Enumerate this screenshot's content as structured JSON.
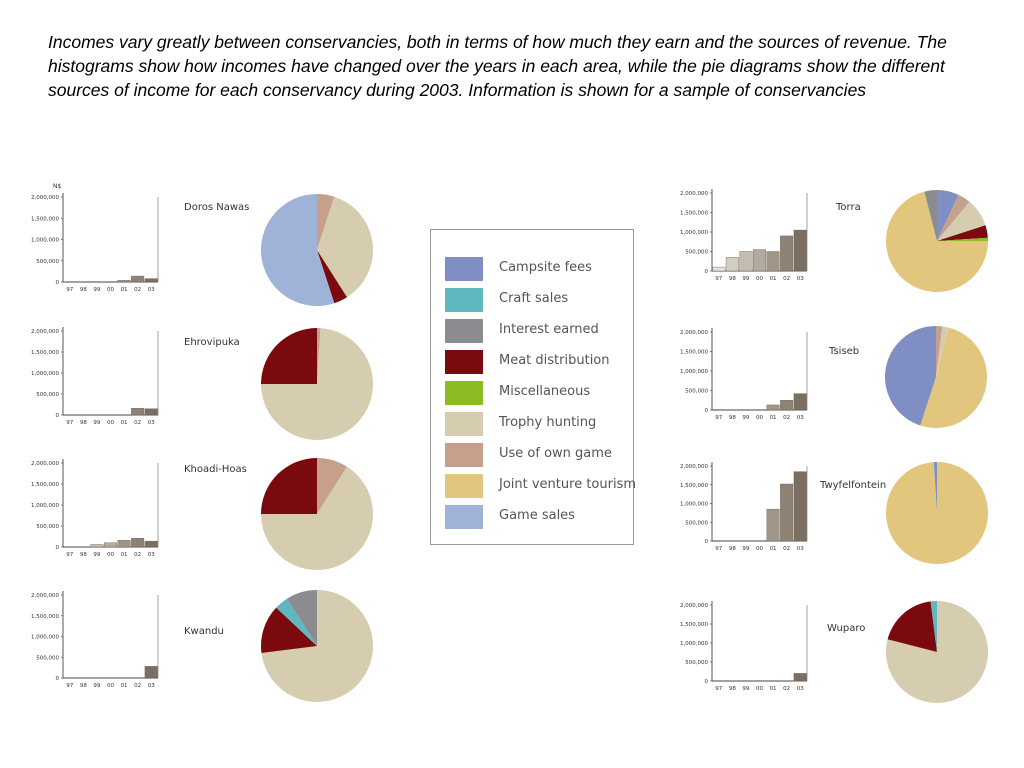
{
  "caption": "Incomes vary greatly between conservancies, both in terms of how much they earn and the sources of revenue. The histograms show how incomes have changed over the years in each area, while the pie diagrams show the different sources of income for each conservancy during 2003. Information is shown for a sample of conservancies",
  "legend": [
    {
      "label": "Campsite fees",
      "color": "#7f8fc4"
    },
    {
      "label": "Craft sales",
      "color": "#5fb8c0"
    },
    {
      "label": "Interest earned",
      "color": "#8c8c90"
    },
    {
      "label": "Meat distribution",
      "color": "#7b0a0e"
    },
    {
      "label": "Miscellaneous",
      "color": "#8cbb22"
    },
    {
      "label": "Trophy hunting",
      "color": "#d6cdb0"
    },
    {
      "label": "Use of own game",
      "color": "#c7a08c"
    },
    {
      "label": "Joint venture tourism",
      "color": "#e3c67e"
    },
    {
      "label": "Game sales",
      "color": "#9fb3d8"
    }
  ],
  "chart_data": [
    {
      "type": "bar",
      "conservancy": "Doros Nawas",
      "unit": "N$",
      "categories": [
        "97",
        "98",
        "99",
        "00",
        "01",
        "02",
        "03"
      ],
      "values": [
        0,
        0,
        0,
        0,
        40000,
        140000,
        80000
      ],
      "yticks": [
        "2,000,000",
        "1,500,000",
        "1,000,000",
        "500,000",
        "0"
      ],
      "ylim": [
        0,
        2000000
      ],
      "pie": {
        "type": "pie",
        "slices": [
          {
            "label": "Use of own game",
            "value": 5
          },
          {
            "label": "Trophy hunting",
            "value": 36
          },
          {
            "label": "Meat distribution",
            "value": 4
          },
          {
            "label": "Game sales",
            "value": 55
          }
        ]
      }
    },
    {
      "type": "bar",
      "conservancy": "Ehrovipuka",
      "categories": [
        "97",
        "98",
        "99",
        "00",
        "01",
        "02",
        "03"
      ],
      "values": [
        0,
        0,
        0,
        0,
        0,
        160000,
        150000
      ],
      "yticks": [
        "2,000,000",
        "1,500,000",
        "1,000,000",
        "500,000",
        "0"
      ],
      "ylim": [
        0,
        2000000
      ],
      "pie": {
        "type": "pie",
        "slices": [
          {
            "label": "Use of own game",
            "value": 1
          },
          {
            "label": "Trophy hunting",
            "value": 74
          },
          {
            "label": "Meat distribution",
            "value": 25
          }
        ]
      }
    },
    {
      "type": "bar",
      "conservancy": "Khoadi-Hoas",
      "categories": [
        "97",
        "98",
        "99",
        "00",
        "01",
        "02",
        "03"
      ],
      "values": [
        0,
        0,
        60000,
        100000,
        160000,
        210000,
        140000
      ],
      "yticks": [
        "2,000,000",
        "1,500,000",
        "1,000,000",
        "500,000",
        "0"
      ],
      "ylim": [
        0,
        2000000
      ],
      "pie": {
        "type": "pie",
        "slices": [
          {
            "label": "Use of own game",
            "value": 9
          },
          {
            "label": "Trophy hunting",
            "value": 66
          },
          {
            "label": "Meat distribution",
            "value": 25
          }
        ]
      }
    },
    {
      "type": "bar",
      "conservancy": "Kwandu",
      "categories": [
        "97",
        "98",
        "99",
        "00",
        "01",
        "02",
        "03"
      ],
      "values": [
        0,
        0,
        0,
        0,
        0,
        0,
        280000
      ],
      "yticks": [
        "2,000,000",
        "1,500,000",
        "1,000,000",
        "500,000",
        "0"
      ],
      "ylim": [
        0,
        2000000
      ],
      "pie": {
        "type": "pie",
        "slices": [
          {
            "label": "Trophy hunting",
            "value": 73
          },
          {
            "label": "Meat distribution",
            "value": 14
          },
          {
            "label": "Craft sales",
            "value": 4
          },
          {
            "label": "Interest earned",
            "value": 9
          }
        ]
      }
    },
    {
      "type": "bar",
      "conservancy": "Torra",
      "categories": [
        "97",
        "98",
        "99",
        "00",
        "01",
        "02",
        "03"
      ],
      "values": [
        100000,
        350000,
        500000,
        550000,
        500000,
        900000,
        1050000
      ],
      "yticks": [
        "2,000,000",
        "1,500,000",
        "1,000,000",
        "500,000",
        "0"
      ],
      "ylim": [
        0,
        2000000
      ],
      "pie": {
        "type": "pie",
        "slices": [
          {
            "label": "Campsite fees",
            "value": 7
          },
          {
            "label": "Use of own game",
            "value": 4
          },
          {
            "label": "Trophy hunting",
            "value": 9
          },
          {
            "label": "Meat distribution",
            "value": 4
          },
          {
            "label": "Miscellaneous",
            "value": 1
          },
          {
            "label": "Joint venture tourism",
            "value": 71
          },
          {
            "label": "Interest earned",
            "value": 4
          }
        ]
      }
    },
    {
      "type": "bar",
      "conservancy": "Tsiseb",
      "categories": [
        "97",
        "98",
        "99",
        "00",
        "01",
        "02",
        "03"
      ],
      "values": [
        0,
        0,
        0,
        0,
        130000,
        250000,
        420000
      ],
      "yticks": [
        "2,000,000",
        "1,500,000",
        "1,000,000",
        "500,000",
        "0"
      ],
      "ylim": [
        0,
        2000000
      ],
      "pie": {
        "type": "pie",
        "slices": [
          {
            "label": "Use of own game",
            "value": 2
          },
          {
            "label": "Trophy hunting",
            "value": 2
          },
          {
            "label": "Joint venture tourism",
            "value": 51
          },
          {
            "label": "Campsite fees",
            "value": 45
          }
        ]
      }
    },
    {
      "type": "bar",
      "conservancy": "Twyfelfontein",
      "categories": [
        "97",
        "98",
        "99",
        "00",
        "01",
        "02",
        "03"
      ],
      "values": [
        0,
        0,
        0,
        0,
        850000,
        1520000,
        1850000
      ],
      "yticks": [
        "2,000,000",
        "1,500,000",
        "1,000,000",
        "500,000",
        "0"
      ],
      "ylim": [
        0,
        2000000
      ],
      "pie": {
        "type": "pie",
        "slices": [
          {
            "label": "Joint venture tourism",
            "value": 99
          },
          {
            "label": "Campsite fees",
            "value": 1
          }
        ]
      }
    },
    {
      "type": "bar",
      "conservancy": "Wuparo",
      "categories": [
        "97",
        "98",
        "99",
        "00",
        "01",
        "02",
        "03"
      ],
      "values": [
        0,
        0,
        0,
        0,
        0,
        0,
        200000
      ],
      "yticks": [
        "2,000,000",
        "1,500,000",
        "1,000,000",
        "500,000",
        "0"
      ],
      "ylim": [
        0,
        2000000
      ],
      "pie": {
        "type": "pie",
        "slices": [
          {
            "label": "Trophy hunting",
            "value": 79
          },
          {
            "label": "Meat distribution",
            "value": 19
          },
          {
            "label": "Craft sales",
            "value": 2
          }
        ]
      }
    }
  ]
}
